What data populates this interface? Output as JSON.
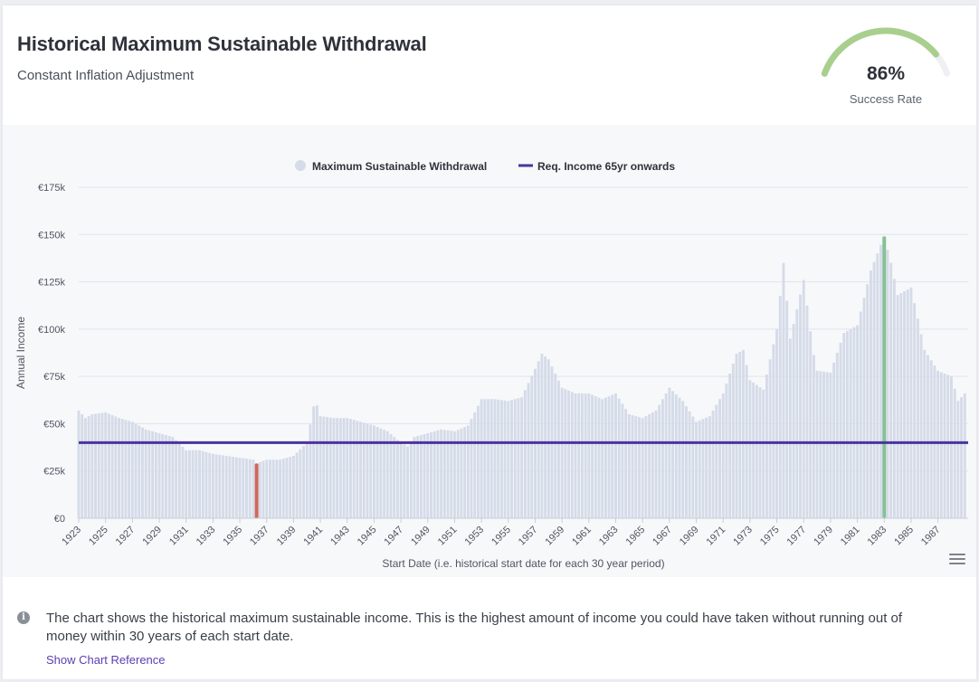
{
  "header": {
    "title": "Historical Maximum Sustainable Withdrawal",
    "subtitle": "Constant Inflation Adjustment"
  },
  "gauge": {
    "value_text": "86%",
    "label": "Success Rate",
    "fraction": 0.86,
    "color": "#a9cf8e",
    "track_color": "#eef0f3"
  },
  "footer": {
    "note": "The chart shows the historical maximum sustainable income. This is the highest amount of income you could have taken without running out of money within 30 years of each start date.",
    "link_label": "Show Chart Reference",
    "info_icon": "info-icon"
  },
  "chart_menu_icon": "hamburger-menu-icon",
  "chart_data": {
    "type": "bar",
    "title": "",
    "xlabel": "Start Date (i.e. historical start date for each 30 year period)",
    "ylabel": "Annual Income",
    "ylim": [
      0,
      175000
    ],
    "x_range": [
      1923,
      1989.25
    ],
    "x_ticks": [
      "1923",
      "1925",
      "1927",
      "1929",
      "1931",
      "1933",
      "1935",
      "1937",
      "1939",
      "1941",
      "1943",
      "1945",
      "1947",
      "1949",
      "1951",
      "1953",
      "1955",
      "1957",
      "1959",
      "1961",
      "1963",
      "1965",
      "1967",
      "1969",
      "1971",
      "1973",
      "1975",
      "1977",
      "1979",
      "1981",
      "1983",
      "1985",
      "1987"
    ],
    "y_ticks": [
      "€0",
      "€25k",
      "€50k",
      "€75k",
      "€100k",
      "€125k",
      "€150k",
      "€175k"
    ],
    "y_tick_values": [
      0,
      25000,
      50000,
      75000,
      100000,
      125000,
      150000,
      175000
    ],
    "grid": true,
    "legend_position": "top-center",
    "legend": [
      {
        "label": "Maximum Sustainable Withdrawal",
        "marker": "circle",
        "color": "#d5dbe8"
      },
      {
        "label": "Req. Income 65yr onwards",
        "marker": "line",
        "color": "#4b33a0"
      }
    ],
    "bar_color": "#d5dbe8",
    "min_color": "#d0675e",
    "max_color": "#86c195",
    "required_income": 40000,
    "bar_interval_years": 0.25,
    "series": [
      {
        "name": "Maximum Sustainable Withdrawal",
        "x": [
          1923,
          1923.5,
          1924,
          1925,
          1926,
          1927,
          1928,
          1929,
          1930,
          1931,
          1932,
          1933,
          1934,
          1935,
          1936,
          1936.25,
          1937,
          1938,
          1939,
          1940,
          1940.6,
          1941,
          1942,
          1943,
          1944,
          1945,
          1946,
          1947,
          1947.5,
          1948,
          1949,
          1950,
          1951,
          1952,
          1953,
          1954,
          1955,
          1956,
          1957,
          1957.5,
          1958,
          1959,
          1960,
          1961,
          1962,
          1963,
          1964,
          1965,
          1966,
          1967,
          1968,
          1969,
          1970,
          1971,
          1972,
          1972.5,
          1973,
          1974,
          1975,
          1975.5,
          1976,
          1977,
          1977.7,
          1978,
          1979,
          1980,
          1981,
          1982,
          1983,
          1983.5,
          1984,
          1985,
          1986,
          1987,
          1988,
          1988.5,
          1989
        ],
        "values": [
          57000,
          53000,
          55000,
          56000,
          53000,
          51000,
          47000,
          45000,
          43000,
          36000,
          36000,
          34000,
          33000,
          32000,
          31000,
          29000,
          31000,
          31000,
          33000,
          40000,
          63000,
          54000,
          53000,
          53000,
          51000,
          49000,
          46000,
          40000,
          38000,
          43000,
          45000,
          47000,
          46000,
          49000,
          63000,
          63000,
          62000,
          64000,
          79000,
          87000,
          84000,
          69000,
          66000,
          66000,
          63000,
          66000,
          55000,
          53000,
          57000,
          69000,
          62000,
          51000,
          54000,
          66000,
          87000,
          89000,
          73000,
          68000,
          100000,
          135000,
          95000,
          126000,
          88000,
          78000,
          77000,
          98000,
          102000,
          131000,
          149000,
          135000,
          118000,
          122000,
          89000,
          78000,
          75000,
          62000,
          66000
        ]
      }
    ],
    "min_highlight": {
      "x": 1936.25,
      "value": 29000
    },
    "max_highlight": {
      "x": 1983,
      "value": 149000
    }
  }
}
